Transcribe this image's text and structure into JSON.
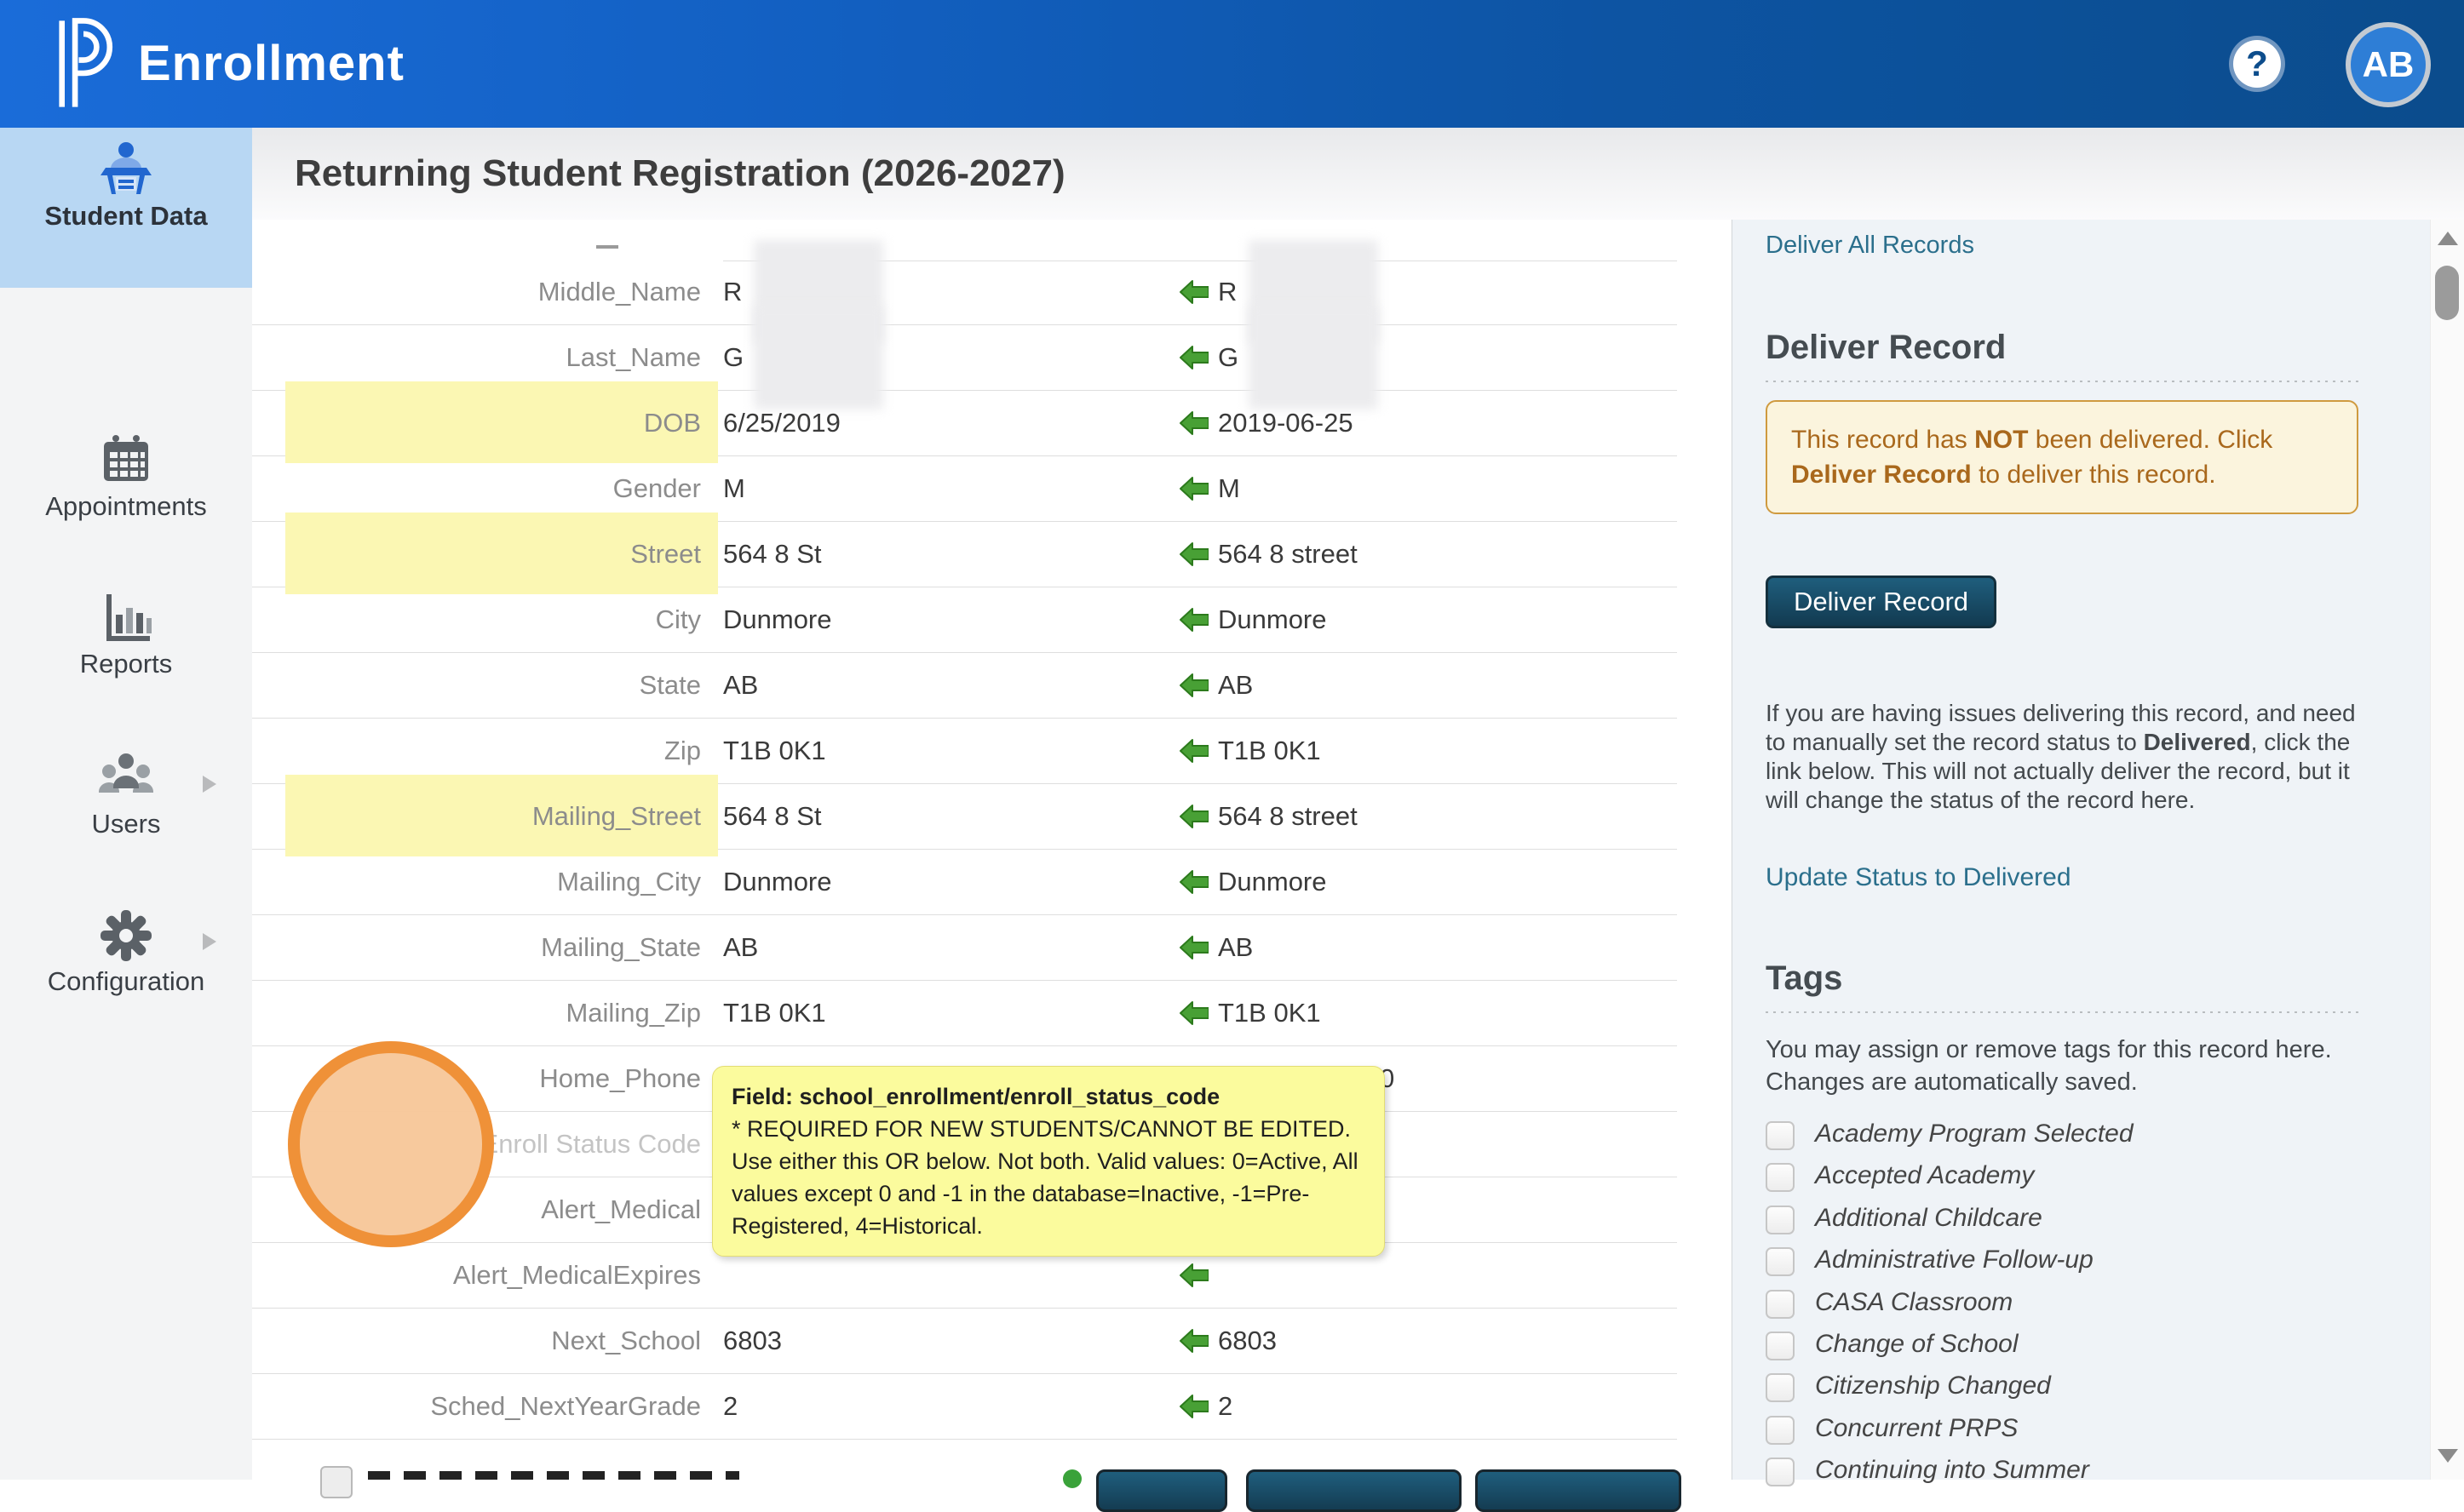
{
  "header": {
    "app_title": "Enrollment",
    "help_glyph": "?",
    "avatar_initials": "AB"
  },
  "sidebar": {
    "items": [
      {
        "label": "Student Data",
        "active": true,
        "chevron": false
      },
      {
        "label": "Appointments",
        "active": false,
        "chevron": false
      },
      {
        "label": "Reports",
        "active": false,
        "chevron": false
      },
      {
        "label": "Users",
        "active": false,
        "chevron": true
      },
      {
        "label": "Configuration",
        "active": false,
        "chevron": true
      }
    ]
  },
  "page": {
    "title": "Returning Student Registration (2026-2027)"
  },
  "compare": {
    "rows": [
      {
        "label": "Middle_Name",
        "left": "R",
        "right": "R",
        "left_redacted": true,
        "right_redacted": true,
        "arrow": true
      },
      {
        "label": "Last_Name",
        "left": "G",
        "right": "G",
        "left_redacted": true,
        "right_redacted": true,
        "arrow": true
      },
      {
        "label": "DOB",
        "left": "6/25/2019",
        "right": "2019-06-25",
        "highlight": true,
        "arrow": true
      },
      {
        "label": "Gender",
        "left": "M",
        "right": "M",
        "arrow": true
      },
      {
        "label": "Street",
        "left": "564 8 St",
        "right": "564 8 street",
        "highlight": true,
        "arrow": true
      },
      {
        "label": "City",
        "left": "Dunmore",
        "right": "Dunmore",
        "arrow": true
      },
      {
        "label": "State",
        "left": "AB",
        "right": "AB",
        "arrow": true
      },
      {
        "label": "Zip",
        "left": "T1B 0K1",
        "right": "T1B 0K1",
        "arrow": true
      },
      {
        "label": "Mailing_Street",
        "left": "564 8 St",
        "right": "564 8 street",
        "highlight": true,
        "arrow": true
      },
      {
        "label": "Mailing_City",
        "left": "Dunmore",
        "right": "Dunmore",
        "arrow": true
      },
      {
        "label": "Mailing_State",
        "left": "AB",
        "right": "AB",
        "arrow": true
      },
      {
        "label": "Mailing_Zip",
        "left": "T1B 0K1",
        "right": "T1B 0K1",
        "arrow": true
      },
      {
        "label": "Home_Phone",
        "left": "",
        "right": "0",
        "right_pad": 190,
        "arrow": false
      },
      {
        "label": "Enroll Status Code",
        "left": "",
        "right": "",
        "disabled": true,
        "arrow": false
      },
      {
        "label": "Alert_Medical",
        "left": "",
        "right": "",
        "arrow": false
      },
      {
        "label": "Alert_MedicalExpires",
        "left": "",
        "right": "",
        "arrow": true
      },
      {
        "label": "Next_School",
        "left": "6803",
        "right": "6803",
        "arrow": true
      },
      {
        "label": "Sched_NextYearGrade",
        "left": "2",
        "right": "2",
        "arrow": true
      }
    ]
  },
  "tooltip": {
    "title": "Field: school_enrollment/enroll_status_code",
    "body": "* REQUIRED FOR NEW STUDENTS/CANNOT BE EDITED. Use either this OR below. Not both. Valid values: 0=Active, All values except 0 and -1 in the database=Inactive, -1=Pre-Registered, 4=Historical."
  },
  "panel": {
    "deliver_all_link": "Deliver All Records",
    "deliver_heading": "Deliver Record",
    "notice": {
      "p1": "This record has ",
      "b1": "NOT",
      "p2": " been delivered. Click ",
      "b2": "Deliver Record",
      "p3": " to deliver this record."
    },
    "deliver_button": "Deliver Record",
    "manual": {
      "p1": "If you are having issues delivering this record, and need to manually set the record status to ",
      "b1": "Delivered",
      "p2": ", click the link below. This will not actually deliver the record, but it will change the status of the record here."
    },
    "update_link": "Update Status to Delivered",
    "tags_heading": "Tags",
    "tags_intro": "You may assign or remove tags for this record here. Changes are automatically saved.",
    "tags": [
      "Academy Program Selected",
      "Accepted Academy",
      "Additional Childcare",
      "Administrative Follow-up",
      "CASA Classroom",
      "Change of School",
      "Citizenship Changed",
      "Concurrent PRPS",
      "Continuing into Summer"
    ]
  }
}
